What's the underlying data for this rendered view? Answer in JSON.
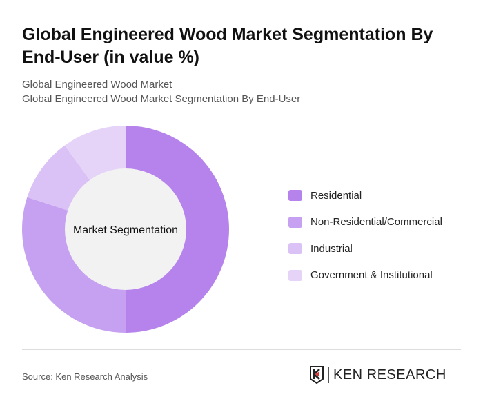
{
  "title": "Global Engineered Wood Market Segmentation By End-User (in value %)",
  "subtitle1": "Global Engineered Wood Market",
  "subtitle2": "Global Engineered Wood Market Segmentation By End-User",
  "source": "Source: Ken Research Analysis",
  "logo_text": "KEN RESEARCH",
  "chart_data": {
    "type": "pie",
    "donut": true,
    "center_label": "Market Segmentation",
    "categories": [
      "Residential",
      "Non-Residential/Commercial",
      "Industrial",
      "Government & Institutional"
    ],
    "values": [
      50,
      30,
      10,
      10
    ],
    "colors": [
      "#b682ec",
      "#c7a1f1",
      "#dbc2f6",
      "#e6d4f8"
    ],
    "legend_position": "right"
  }
}
